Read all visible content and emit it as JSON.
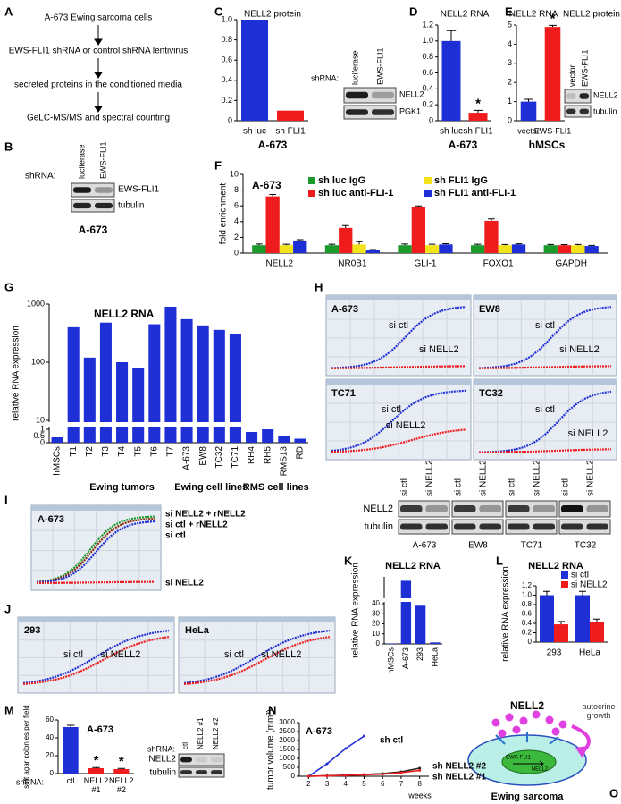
{
  "panel_labels": [
    "A",
    "B",
    "C",
    "D",
    "E",
    "F",
    "G",
    "H",
    "I",
    "J",
    "K",
    "L",
    "M",
    "N",
    "O"
  ],
  "flow": [
    "A-673 Ewing sarcoma cells",
    "EWS-FLI1 shRNA or control shRNA lentivirus",
    "secreted proteins in the conditioned media",
    "GeLC-MS/MS and spectral counting"
  ],
  "blot_b": {
    "label": "shRNA:",
    "lanes": [
      "luciferase",
      "EWS-FLI1"
    ],
    "bands": [
      "EWS-FLI1",
      "tubulin"
    ],
    "caption": "A-673"
  },
  "blot_c": {
    "label": "shRNA:",
    "lanes": [
      "luciferase",
      "EWS-FLI1"
    ],
    "bands": [
      "NELL2",
      "PGK1"
    ]
  },
  "blot_e": {
    "title": "NELL2 protein",
    "lanes": [
      "vector",
      "EWS-FLI1"
    ],
    "bands": [
      "NELL2",
      "tubulin"
    ]
  },
  "growth_h": {
    "cells": [
      "A-673",
      "EW8",
      "TC71",
      "TC32"
    ],
    "ctl": "si ctl",
    "kd": "si NELL2"
  },
  "blot_h": {
    "lanes": [
      "si ctl",
      "si NELL2"
    ],
    "bands": [
      "NELL2",
      "tubulin"
    ],
    "cells": [
      "A-673",
      "EW8",
      "TC71",
      "TC32"
    ]
  },
  "growth_i": {
    "cell": "A-673",
    "labels": [
      "si NELL2 + rNELL2",
      "si ctl + rNELL2",
      "si ctl",
      "si NELL2"
    ]
  },
  "growth_j": {
    "cells": [
      "293",
      "HeLa"
    ],
    "ctl": "si ctl",
    "kd": "si NELL2"
  },
  "blot_m": {
    "label": "shRNA:",
    "lanes": [
      "ctl",
      "NELL2 #1",
      "NELL2 #2"
    ],
    "bands": [
      "NELL2",
      "tubulin"
    ]
  },
  "diagram_o": {
    "protein": "NELL2",
    "arrow": "autocrine growth",
    "fusion": "EWS-FLI1",
    "gene": "NELL2",
    "cell": "Ewing sarcoma"
  },
  "chart_data": [
    {
      "type": "bar",
      "title": "NELL2 protein",
      "caption": "A-673",
      "categories": [
        "sh luc",
        "sh FLI1"
      ],
      "values": [
        1,
        0.1
      ],
      "colors": [
        "#1f2fd6",
        "#ee1c1c"
      ],
      "ylim": [
        0,
        1
      ],
      "yticks": [
        0,
        0.2,
        0.4,
        0.6,
        0.8,
        {
          "value": 1,
          "label": "1.0"
        }
      ]
    },
    {
      "type": "bar",
      "title": "NELL2 RNA",
      "caption": "A-673",
      "categories": [
        "sh luc",
        "sh FLI1"
      ],
      "values": [
        1,
        0.1
      ],
      "errors": [
        0.13,
        0.03
      ],
      "annotations": [
        null,
        "*"
      ],
      "colors": [
        "#1f2fd6",
        "#ee1c1c"
      ],
      "ylim": [
        0,
        1.2
      ],
      "yticks": [
        0,
        0.2,
        0.4,
        0.6,
        0.8,
        {
          "value": 1,
          "label": "1.0"
        },
        1.2
      ]
    },
    {
      "type": "bar",
      "title": "NELL2 RNA",
      "caption": "hMSCs",
      "categories": [
        "vector",
        "EWS-FLI1"
      ],
      "values": [
        1,
        4.9
      ],
      "errors": [
        0.12,
        0.08
      ],
      "annotations": [
        null,
        "*"
      ],
      "colors": [
        "#1f2fd6",
        "#ee1c1c"
      ],
      "ylim": [
        0,
        5
      ],
      "yticks": [
        0,
        1,
        2,
        3,
        4,
        5
      ]
    },
    {
      "type": "bar",
      "title": "A-673",
      "ylabel": "fold enrichment",
      "categories": [
        "NELL2",
        "NR0B1",
        "GLI-1",
        "FOXO1",
        "GAPDH"
      ],
      "ylim": [
        0,
        10
      ],
      "yticks": [
        0,
        2,
        4,
        6,
        8,
        10
      ],
      "series": [
        {
          "name": "sh luc IgG",
          "color": "#1a9a2a",
          "values": [
            1,
            1,
            1,
            1,
            1
          ],
          "errors": [
            0.15,
            0.12,
            0.15,
            0.12,
            0.1
          ]
        },
        {
          "name": "sh luc anti-FLI-1",
          "color": "#ee1c1c",
          "values": [
            7.2,
            3.2,
            5.8,
            4.1,
            1
          ],
          "errors": [
            0.25,
            0.3,
            0.2,
            0.25,
            0.08
          ]
        },
        {
          "name": "sh FLI1 IgG",
          "color": "#f2e31a",
          "values": [
            1,
            1.1,
            1,
            1,
            1
          ],
          "errors": [
            0.12,
            0.35,
            0.12,
            0.1,
            0.1
          ]
        },
        {
          "name": "sh FLI1 anti-FLI-1",
          "color": "#1f2fd6",
          "values": [
            1.6,
            0.4,
            1.1,
            1.1,
            0.9
          ],
          "errors": [
            0.1,
            0.05,
            0.1,
            0.08,
            0.08
          ]
        }
      ]
    },
    {
      "type": "bar",
      "title": "NELL2 RNA",
      "ylabel": "relative RNA expression",
      "categories": [
        "hMSCs",
        "T1",
        "T2",
        "T3",
        "T4",
        "T5",
        "T6",
        "T7",
        "A-673",
        "EW8",
        "TC32",
        "TC71",
        "RH4",
        "RH5",
        "RMS13",
        "RD"
      ],
      "values": [
        0.4,
        400,
        120,
        480,
        100,
        80,
        450,
        900,
        550,
        430,
        360,
        300,
        0.8,
        1,
        0.5,
        0.3
      ],
      "color": "#1f2fd6",
      "yscale": "log",
      "ybreak": [
        1,
        10
      ],
      "ylim": [
        0,
        1000
      ],
      "yticks": [
        0,
        0.5,
        1,
        10,
        100,
        1000
      ],
      "groups": [
        "Ewing tumors",
        "Ewing cell lines",
        "RMS cell lines"
      ]
    },
    {
      "type": "bar",
      "title": "NELL2 RNA",
      "ylabel": "relative RNA expression",
      "categories": [
        "hMSCs",
        "A-673",
        "293",
        "HeLa"
      ],
      "values": [
        0.5,
        580,
        38,
        1.5
      ],
      "color": "#1f2fd6",
      "ybreak": [
        40,
        500
      ],
      "ylim": [
        0,
        600
      ],
      "yticks": [
        0,
        10,
        20,
        30,
        40
      ]
    },
    {
      "type": "bar",
      "title": "NELL2 RNA",
      "ylabel": "relative RNA expression",
      "categories": [
        "293",
        "HeLa"
      ],
      "ylim": [
        0,
        1.2
      ],
      "yticks": [
        0,
        0.2,
        0.4,
        0.6,
        0.8,
        {
          "value": 1,
          "label": "1.0"
        },
        1.2
      ],
      "series": [
        {
          "name": "si ctl",
          "color": "#1f2fd6",
          "values": [
            1,
            1
          ],
          "errors": [
            0.08,
            0.08
          ]
        },
        {
          "name": "si NELL2",
          "color": "#ee1c1c",
          "values": [
            0.38,
            0.43
          ],
          "errors": [
            0.06,
            0.06
          ]
        }
      ]
    },
    {
      "type": "bar",
      "title": "A-673",
      "ylabel": "soft agar colonies per field",
      "xlabel": "shRNA:",
      "categories": [
        "ctl",
        "NELL2 #1",
        "NELL2 #2"
      ],
      "values": [
        52,
        6,
        5
      ],
      "errors": [
        2,
        0.8,
        0.8
      ],
      "annotations": [
        null,
        "*",
        "*"
      ],
      "colors": [
        "#1f2fd6",
        "#ee1c1c",
        "#ee1c1c"
      ],
      "ylim": [
        0,
        60
      ],
      "yticks": [
        0,
        20,
        40,
        60
      ]
    },
    {
      "type": "line",
      "title": "A-673",
      "ylabel": "tumor volume (mm³)",
      "xlabel": "weeks",
      "x": [
        2,
        3,
        4,
        5,
        6,
        7,
        8
      ],
      "xlim": [
        1.5,
        8.5
      ],
      "xticks": [
        2,
        3,
        4,
        5,
        6,
        7,
        8
      ],
      "ylim": [
        0,
        3000
      ],
      "yticks": [
        0,
        500,
        1000,
        1500,
        2000,
        2500,
        3000
      ],
      "series": [
        {
          "name": "sh ctl",
          "color": "#1f2fd6",
          "values": [
            0,
            700,
            1550,
            2250,
            null,
            null,
            null
          ]
        },
        {
          "name": "sh NELL2 #2",
          "color": "#1f2fd6",
          "values": [
            0,
            30,
            60,
            100,
            150,
            250,
            450
          ]
        },
        {
          "name": "sh NELL2 #1",
          "color": "#ee1c1c",
          "values": [
            0,
            20,
            50,
            80,
            120,
            200,
            330
          ]
        }
      ]
    }
  ]
}
